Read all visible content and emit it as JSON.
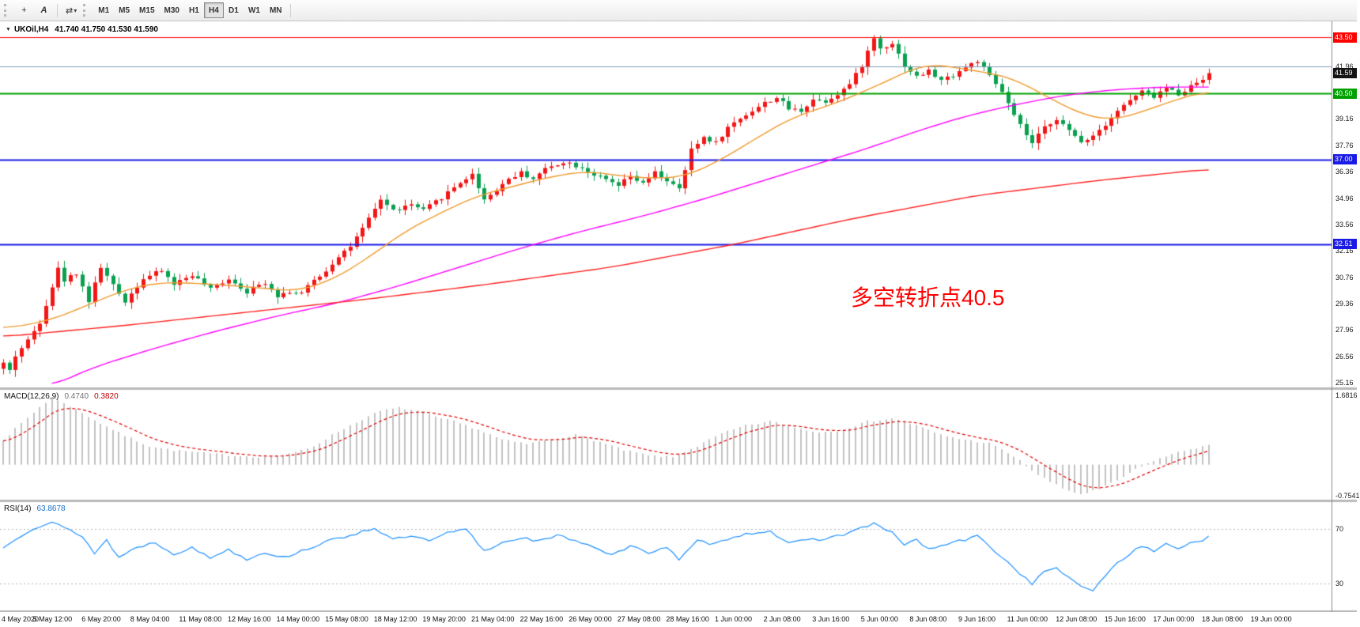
{
  "toolbar": {
    "icons": [
      {
        "name": "crosshair",
        "glyph": "+"
      },
      {
        "name": "text-label",
        "glyph": "A"
      },
      {
        "name": "cycle",
        "glyph": "⇄"
      },
      {
        "name": "dropdown",
        "glyph": "▾"
      }
    ],
    "timeframes": [
      "M1",
      "M5",
      "M15",
      "M30",
      "H1",
      "H4",
      "D1",
      "W1",
      "MN"
    ],
    "active_timeframe": "H4"
  },
  "chart": {
    "title": {
      "caret": "▼",
      "symbol": "UKOil,H4",
      "values": "41.740 41.750 41.530 41.590"
    },
    "annotation": {
      "text": "多空转折点40.5",
      "color": "#ff0000"
    }
  },
  "chart_data": {
    "type": "candlestick+indicators",
    "symbol": "UKOil",
    "timeframe": "H4",
    "current_ohlc": {
      "open": "41.740",
      "high": "41.750",
      "low": "41.530",
      "close": "41.590"
    },
    "price_axis": {
      "min": 24.9,
      "max": 44.3,
      "ticks": [
        "41.96",
        "39.16",
        "37.76",
        "36.36",
        "34.96",
        "33.56",
        "32.16",
        "30.76",
        "29.36",
        "27.96",
        "26.56",
        "25.16"
      ],
      "boxes": [
        {
          "label": "43.50",
          "price": 43.5,
          "bg": "#ff0000"
        },
        {
          "label": "41.59",
          "price": 41.59,
          "bg": "#141414"
        },
        {
          "label": "40.50",
          "price": 40.5,
          "bg": "#00a000"
        },
        {
          "label": "37.00",
          "price": 37.0,
          "bg": "#1a1ae6"
        },
        {
          "label": "32.51",
          "price": 32.51,
          "bg": "#1a1ae6"
        }
      ]
    },
    "levels": [
      {
        "price": 43.5,
        "color": "#ff0000",
        "width": 1
      },
      {
        "price": 41.96,
        "color": "#7f9db4",
        "width": 1
      },
      {
        "price": 40.5,
        "color": "#00a000",
        "width": 2
      },
      {
        "price": 37.0,
        "color": "#1a1ae6",
        "width": 2
      },
      {
        "price": 32.51,
        "color": "#1a1ae6",
        "width": 2
      }
    ],
    "candles": {
      "count": 199,
      "spacing": 7.7,
      "body_width": 5,
      "up_color": "#f21616",
      "down_color": "#0aa050",
      "last_close": 41.59,
      "path": [
        [
          0,
          26.2
        ],
        [
          1,
          25.8
        ],
        [
          2,
          26.6
        ],
        [
          4,
          27.4
        ],
        [
          6,
          28.4
        ],
        [
          9,
          31.2
        ],
        [
          10,
          30.6
        ],
        [
          12,
          31.0
        ],
        [
          14,
          29.5
        ],
        [
          16,
          31.3
        ],
        [
          18,
          30.3
        ],
        [
          20,
          29.5
        ],
        [
          23,
          30.7
        ],
        [
          26,
          31.1
        ],
        [
          28,
          30.4
        ],
        [
          31,
          30.9
        ],
        [
          34,
          30.1
        ],
        [
          37,
          30.7
        ],
        [
          40,
          30.0
        ],
        [
          43,
          30.5
        ],
        [
          45,
          29.8
        ],
        [
          47,
          30.0
        ],
        [
          49,
          29.9
        ],
        [
          51,
          30.6
        ],
        [
          53,
          31.1
        ],
        [
          55,
          31.9
        ],
        [
          57,
          32.4
        ],
        [
          59,
          33.3
        ],
        [
          62,
          34.9
        ],
        [
          64,
          34.3
        ],
        [
          67,
          34.6
        ],
        [
          69,
          34.3
        ],
        [
          72,
          35.0
        ],
        [
          75,
          35.8
        ],
        [
          77,
          36.2
        ],
        [
          79,
          34.9
        ],
        [
          81,
          35.4
        ],
        [
          83,
          36.0
        ],
        [
          85,
          36.3
        ],
        [
          87,
          36.0
        ],
        [
          89,
          36.5
        ],
        [
          92,
          36.9
        ],
        [
          95,
          36.6
        ],
        [
          97,
          36.2
        ],
        [
          101,
          35.6
        ],
        [
          103,
          36.1
        ],
        [
          105,
          35.7
        ],
        [
          107,
          36.3
        ],
        [
          109,
          35.9
        ],
        [
          111,
          35.4
        ],
        [
          113,
          37.5
        ],
        [
          115,
          38.2
        ],
        [
          117,
          37.9
        ],
        [
          119,
          38.7
        ],
        [
          121,
          39.2
        ],
        [
          123,
          39.6
        ],
        [
          125,
          40.0
        ],
        [
          127,
          40.3
        ],
        [
          129,
          39.7
        ],
        [
          131,
          39.6
        ],
        [
          133,
          40.2
        ],
        [
          135,
          40.1
        ],
        [
          137,
          40.5
        ],
        [
          139,
          41.0
        ],
        [
          141,
          42.0
        ],
        [
          143,
          43.45
        ],
        [
          144,
          42.9
        ],
        [
          146,
          43.2
        ],
        [
          148,
          42.0
        ],
        [
          150,
          41.4
        ],
        [
          152,
          41.7
        ],
        [
          154,
          41.2
        ],
        [
          156,
          41.5
        ],
        [
          158,
          41.9
        ],
        [
          160,
          42.25
        ],
        [
          162,
          41.4
        ],
        [
          164,
          40.6
        ],
        [
          166,
          39.3
        ],
        [
          168,
          38.3
        ],
        [
          169,
          37.85
        ],
        [
          171,
          38.7
        ],
        [
          173,
          39.2
        ],
        [
          175,
          38.5
        ],
        [
          177,
          37.95
        ],
        [
          179,
          38.3
        ],
        [
          181,
          38.9
        ],
        [
          183,
          39.6
        ],
        [
          185,
          40.15
        ],
        [
          187,
          40.6
        ],
        [
          189,
          40.35
        ],
        [
          191,
          40.8
        ],
        [
          193,
          40.5
        ],
        [
          195,
          40.9
        ],
        [
          197,
          41.3
        ],
        [
          198,
          41.59
        ]
      ]
    },
    "moving_averages": [
      {
        "name": "fast-ma",
        "color": "#f09a2e",
        "start": 0,
        "path": [
          [
            0,
            28.0
          ],
          [
            8,
            28.5
          ],
          [
            14,
            29.3
          ],
          [
            20,
            30.1
          ],
          [
            26,
            30.5
          ],
          [
            34,
            30.4
          ],
          [
            42,
            30.2
          ],
          [
            48,
            30.0
          ],
          [
            54,
            30.6
          ],
          [
            60,
            31.8
          ],
          [
            66,
            33.2
          ],
          [
            72,
            34.2
          ],
          [
            78,
            35.1
          ],
          [
            84,
            35.6
          ],
          [
            90,
            36.1
          ],
          [
            96,
            36.4
          ],
          [
            102,
            36.1
          ],
          [
            108,
            36.0
          ],
          [
            112,
            36.1
          ],
          [
            118,
            37.0
          ],
          [
            124,
            38.2
          ],
          [
            130,
            39.3
          ],
          [
            136,
            39.9
          ],
          [
            142,
            40.7
          ],
          [
            146,
            41.3
          ],
          [
            150,
            41.9
          ],
          [
            152,
            42.1
          ],
          [
            156,
            41.9
          ],
          [
            162,
            41.6
          ],
          [
            166,
            41.3
          ],
          [
            170,
            40.6
          ],
          [
            174,
            39.9
          ],
          [
            178,
            39.3
          ],
          [
            182,
            39.1
          ],
          [
            186,
            39.4
          ],
          [
            190,
            39.9
          ],
          [
            194,
            40.3
          ],
          [
            198,
            40.7
          ]
        ]
      },
      {
        "name": "mid-ma",
        "color": "#ff00ff",
        "start": 8,
        "path": [
          [
            8,
            25.0
          ],
          [
            15,
            26.0
          ],
          [
            25,
            27.0
          ],
          [
            35,
            27.9
          ],
          [
            45,
            28.7
          ],
          [
            55,
            29.4
          ],
          [
            65,
            30.3
          ],
          [
            75,
            31.3
          ],
          [
            85,
            32.3
          ],
          [
            95,
            33.2
          ],
          [
            105,
            34.0
          ],
          [
            115,
            34.9
          ],
          [
            125,
            35.9
          ],
          [
            135,
            36.9
          ],
          [
            142,
            37.6
          ],
          [
            150,
            38.5
          ],
          [
            158,
            39.3
          ],
          [
            166,
            39.9
          ],
          [
            174,
            40.4
          ],
          [
            182,
            40.7
          ],
          [
            190,
            40.85
          ],
          [
            198,
            40.85
          ]
        ]
      },
      {
        "name": "slow-ma",
        "color": "#ff2020",
        "start": 0,
        "path": [
          [
            0,
            27.6
          ],
          [
            20,
            28.2
          ],
          [
            40,
            28.9
          ],
          [
            60,
            29.6
          ],
          [
            80,
            30.4
          ],
          [
            100,
            31.3
          ],
          [
            120,
            32.5
          ],
          [
            140,
            33.9
          ],
          [
            160,
            35.1
          ],
          [
            180,
            35.9
          ],
          [
            198,
            36.5
          ]
        ]
      }
    ],
    "macd": {
      "label": "MACD(12,26,9)",
      "value_main": "0.4740",
      "value_signal": "0.3820",
      "max_label": "1.6816",
      "min_label": "-0.7541",
      "bar_color": "#c2c2c2",
      "signal_color": "#e00000",
      "path": [
        [
          0,
          0.6
        ],
        [
          3,
          1.0
        ],
        [
          6,
          1.4
        ],
        [
          8,
          1.62
        ],
        [
          10,
          1.5
        ],
        [
          13,
          1.25
        ],
        [
          16,
          1.0
        ],
        [
          20,
          0.7
        ],
        [
          24,
          0.45
        ],
        [
          28,
          0.35
        ],
        [
          33,
          0.28
        ],
        [
          38,
          0.22
        ],
        [
          43,
          0.18
        ],
        [
          47,
          0.25
        ],
        [
          51,
          0.45
        ],
        [
          55,
          0.8
        ],
        [
          59,
          1.1
        ],
        [
          62,
          1.3
        ],
        [
          65,
          1.38
        ],
        [
          68,
          1.3
        ],
        [
          71,
          1.15
        ],
        [
          74,
          1.05
        ],
        [
          78,
          0.85
        ],
        [
          82,
          0.6
        ],
        [
          86,
          0.5
        ],
        [
          90,
          0.62
        ],
        [
          94,
          0.72
        ],
        [
          98,
          0.55
        ],
        [
          102,
          0.35
        ],
        [
          106,
          0.22
        ],
        [
          110,
          0.18
        ],
        [
          114,
          0.45
        ],
        [
          118,
          0.75
        ],
        [
          122,
          0.95
        ],
        [
          126,
          1.05
        ],
        [
          130,
          0.9
        ],
        [
          134,
          0.78
        ],
        [
          138,
          0.85
        ],
        [
          142,
          1.05
        ],
        [
          146,
          1.12
        ],
        [
          150,
          0.95
        ],
        [
          154,
          0.72
        ],
        [
          158,
          0.6
        ],
        [
          162,
          0.52
        ],
        [
          166,
          0.2
        ],
        [
          170,
          -0.25
        ],
        [
          174,
          -0.58
        ],
        [
          177,
          -0.72
        ],
        [
          180,
          -0.6
        ],
        [
          183,
          -0.38
        ],
        [
          186,
          -0.12
        ],
        [
          189,
          0.1
        ],
        [
          192,
          0.25
        ],
        [
          195,
          0.38
        ],
        [
          198,
          0.47
        ]
      ]
    },
    "rsi": {
      "label": "RSI(14)",
      "value": "63.8678",
      "levels": [
        70,
        30
      ],
      "level_labels": [
        "70",
        "30"
      ],
      "line_color": "#1e90ff",
      "path": [
        [
          0,
          56
        ],
        [
          2,
          63
        ],
        [
          5,
          71
        ],
        [
          8,
          75
        ],
        [
          10,
          71
        ],
        [
          13,
          65
        ],
        [
          15,
          52
        ],
        [
          17,
          62
        ],
        [
          19,
          49
        ],
        [
          22,
          57
        ],
        [
          25,
          60
        ],
        [
          28,
          52
        ],
        [
          31,
          56
        ],
        [
          34,
          49
        ],
        [
          37,
          55
        ],
        [
          40,
          48
        ],
        [
          43,
          53
        ],
        [
          46,
          49
        ],
        [
          49,
          54
        ],
        [
          52,
          59
        ],
        [
          55,
          63
        ],
        [
          58,
          67
        ],
        [
          61,
          71
        ],
        [
          64,
          62
        ],
        [
          67,
          65
        ],
        [
          70,
          61
        ],
        [
          73,
          67
        ],
        [
          76,
          70
        ],
        [
          79,
          54
        ],
        [
          82,
          60
        ],
        [
          85,
          64
        ],
        [
          88,
          61
        ],
        [
          91,
          65
        ],
        [
          94,
          62
        ],
        [
          97,
          57
        ],
        [
          100,
          51
        ],
        [
          103,
          57
        ],
        [
          106,
          53
        ],
        [
          109,
          57
        ],
        [
          111,
          47
        ],
        [
          114,
          61
        ],
        [
          117,
          59
        ],
        [
          120,
          65
        ],
        [
          123,
          67
        ],
        [
          126,
          69
        ],
        [
          129,
          59
        ],
        [
          132,
          62
        ],
        [
          135,
          63
        ],
        [
          138,
          66
        ],
        [
          141,
          71
        ],
        [
          143,
          74
        ],
        [
          146,
          67
        ],
        [
          148,
          59
        ],
        [
          150,
          62
        ],
        [
          152,
          55
        ],
        [
          155,
          59
        ],
        [
          158,
          62
        ],
        [
          160,
          65
        ],
        [
          162,
          57
        ],
        [
          164,
          50
        ],
        [
          166,
          41
        ],
        [
          169,
          30
        ],
        [
          171,
          38
        ],
        [
          173,
          42
        ],
        [
          175,
          34
        ],
        [
          177,
          27
        ],
        [
          179,
          25
        ],
        [
          181,
          36
        ],
        [
          183,
          45
        ],
        [
          185,
          52
        ],
        [
          187,
          57
        ],
        [
          189,
          54
        ],
        [
          191,
          59
        ],
        [
          193,
          56
        ],
        [
          195,
          60
        ],
        [
          197,
          62
        ],
        [
          198,
          63.87
        ]
      ]
    },
    "time_axis": {
      "labels": [
        "4 May 2020",
        "5 May 12:00",
        "6 May 20:00",
        "8 May 04:00",
        "11 May 08:00",
        "12 May 16:00",
        "14 May 00:00",
        "15 May 08:00",
        "18 May 12:00",
        "19 May 20:00",
        "21 May 04:00",
        "22 May 16:00",
        "26 May 00:00",
        "27 May 08:00",
        "28 May 16:00",
        "1 Jun 00:00",
        "2 Jun 08:00",
        "3 Jun 16:00",
        "5 Jun 00:00",
        "8 Jun 08:00",
        "9 Jun 16:00",
        "11 Jun 00:00",
        "12 Jun 08:00",
        "15 Jun 16:00",
        "17 Jun 00:00",
        "18 Jun 08:00",
        "19 Jun 00:00"
      ]
    }
  }
}
